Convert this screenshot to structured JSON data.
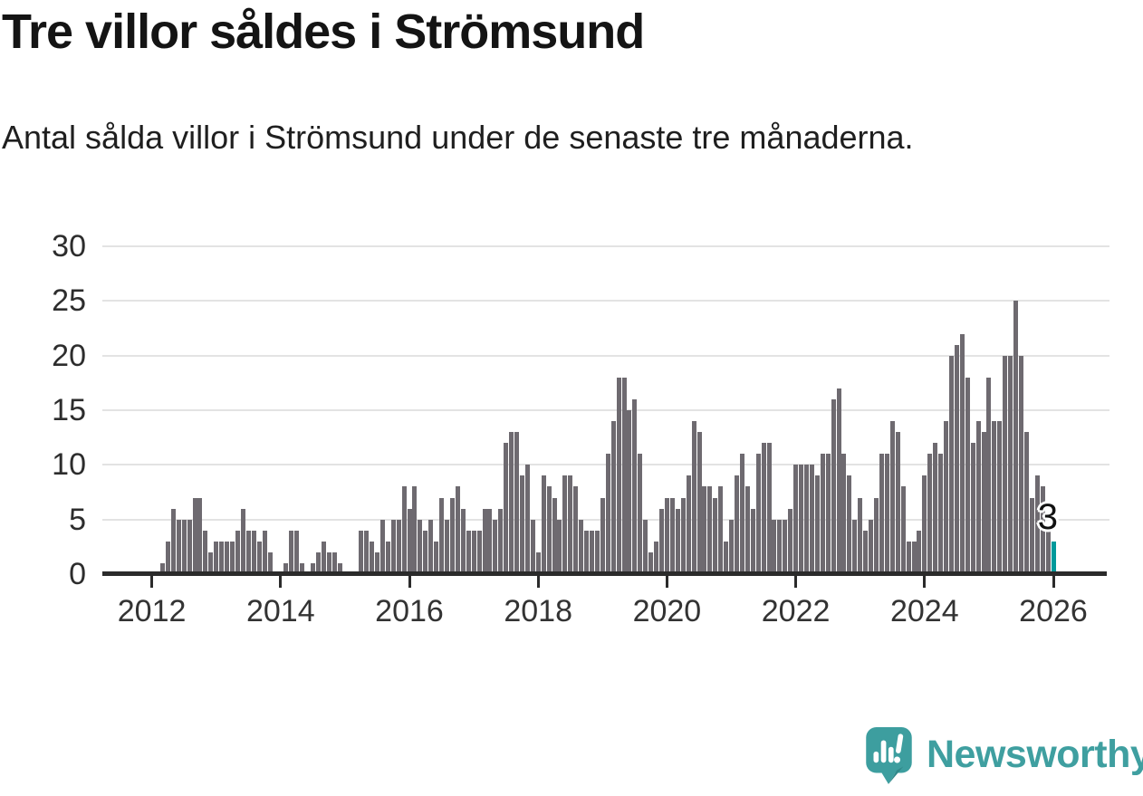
{
  "header": {
    "title": "Tre villor såldes i Strömsund",
    "subtitle": "Antal sålda villor i Strömsund under de senaste tre månaderna."
  },
  "annotation": {
    "last_value_label": "3"
  },
  "logo": {
    "wordmark": "Newsworthy",
    "icon": "newsworthy-speech-bubble-chart-icon"
  },
  "colors": {
    "bar": "#6e6a70",
    "highlight": "#00999b",
    "grid": "#e3e3e3",
    "axis": "#2b2b2b",
    "brand_teal": "#3f9fa0"
  },
  "chart_data": {
    "type": "bar",
    "title": "Tre villor såldes i Strömsund",
    "subtitle": "Antal sålda villor i Strömsund under de senaste tre månaderna.",
    "x_start_month": "2012-03",
    "x_interval": "monthly",
    "xlabel": "",
    "ylabel": "",
    "ylim": [
      0,
      30
    ],
    "grid": "horizontal",
    "yticks": [
      0,
      5,
      10,
      15,
      20,
      25,
      30
    ],
    "xticks": [
      "2012",
      "2014",
      "2016",
      "2018",
      "2020",
      "2022",
      "2024",
      "2026"
    ],
    "highlight_last_bar": {
      "value": 3,
      "label": "3",
      "color": "#00999b"
    },
    "values": [
      1,
      3,
      6,
      5,
      5,
      5,
      7,
      7,
      4,
      2,
      3,
      3,
      3,
      3,
      4,
      6,
      4,
      4,
      3,
      4,
      2,
      0,
      0,
      1,
      4,
      4,
      1,
      0,
      1,
      2,
      3,
      2,
      2,
      1,
      0,
      0,
      0,
      4,
      4,
      3,
      2,
      5,
      3,
      5,
      5,
      8,
      6,
      8,
      5,
      4,
      5,
      3,
      7,
      5,
      7,
      8,
      6,
      4,
      4,
      4,
      6,
      6,
      5,
      6,
      12,
      13,
      13,
      9,
      10,
      5,
      2,
      9,
      8,
      7,
      5,
      9,
      9,
      8,
      5,
      4,
      4,
      4,
      7,
      11,
      14,
      18,
      18,
      15,
      16,
      11,
      5,
      2,
      3,
      6,
      7,
      7,
      6,
      7,
      9,
      14,
      13,
      8,
      8,
      7,
      8,
      3,
      5,
      9,
      11,
      8,
      6,
      11,
      12,
      12,
      5,
      5,
      5,
      6,
      10,
      10,
      10,
      10,
      9,
      11,
      11,
      16,
      17,
      11,
      9,
      5,
      7,
      4,
      5,
      7,
      11,
      11,
      14,
      13,
      8,
      3,
      3,
      4,
      9,
      11,
      12,
      11,
      14,
      20,
      21,
      22,
      18,
      12,
      14,
      13,
      18,
      14,
      14,
      20,
      20,
      25,
      20,
      13,
      7,
      9,
      8,
      4,
      3
    ]
  }
}
